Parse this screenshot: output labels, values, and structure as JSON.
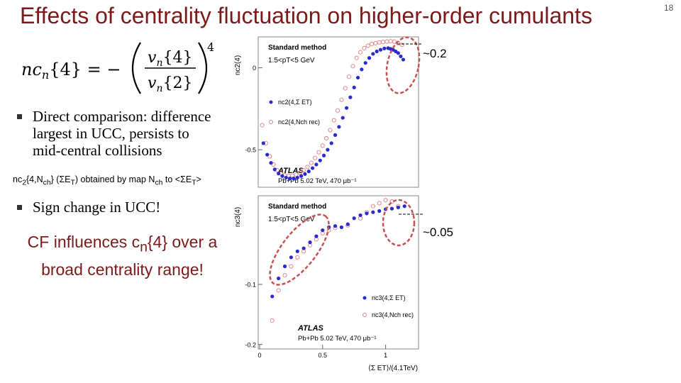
{
  "slide": {
    "title": "Effects of centrality fluctuation on higher-order cumulants",
    "number": "18"
  },
  "formula": {
    "lhs": "nc",
    "lhs_sub": "n",
    "lhs_arg": "{4} = −",
    "num": "v",
    "num_sub": "n",
    "num_arg": "{4}",
    "den": "v",
    "den_sub": "n",
    "den_arg": "{2}",
    "power": "4"
  },
  "bullets": [
    {
      "lines": [
        "Direct comparison: difference",
        "largest in UCC,  persists to",
        "mid-central collisions"
      ]
    },
    {
      "lines": [
        "Sign change in UCC!"
      ]
    }
  ],
  "note": {
    "p1": "nc",
    "s1": "2",
    "p2": "{4,N",
    "s2": "ch",
    "p3": "} (ΣE",
    "s3": "T",
    "p4": ") obtained by map N",
    "s4": "ch",
    "p5": " to <ΣE",
    "s5": "T",
    "p6": ">"
  },
  "conclusion": {
    "l1a": "CF influences c",
    "l1sub": "n",
    "l1b": "{4} over a",
    "l2": "broad centrality range!"
  },
  "colors": {
    "title": "#7a1a1a",
    "standard_series": "#2a2ad0",
    "nch_series": "#e08a8a",
    "ellipse": "#c75050"
  },
  "chart_data": [
    {
      "type": "scatter",
      "ylabel": "nc2(4)",
      "ytick_labels": [
        "0",
        "-0.5"
      ],
      "yticks": [
        0,
        -0.5
      ],
      "ylim": [
        -0.72,
        0.18
      ],
      "xlim": [
        0,
        1.25
      ],
      "method_label": "Standard method",
      "pt_label": "1.5<pT<5 GeV",
      "legend": [
        "nc2(4,Σ ET)",
        "nc2(4,Nch rec)"
      ],
      "experiment": "ATLAS",
      "system": "Pb+Pb 5.02 TeV, 470 μb⁻¹",
      "annotation": "~0.2",
      "series": [
        {
          "name": "nc2(4,Σ ET)",
          "x": [
            0.03,
            0.06,
            0.09,
            0.12,
            0.15,
            0.18,
            0.21,
            0.24,
            0.27,
            0.3,
            0.33,
            0.36,
            0.39,
            0.42,
            0.45,
            0.48,
            0.51,
            0.54,
            0.57,
            0.6,
            0.63,
            0.66,
            0.69,
            0.72,
            0.75,
            0.78,
            0.81,
            0.84,
            0.87,
            0.9,
            0.93,
            0.96,
            0.99,
            1.02,
            1.04,
            1.06,
            1.08,
            1.1,
            1.12,
            1.14
          ],
          "y": [
            -0.46,
            -0.53,
            -0.58,
            -0.62,
            -0.645,
            -0.66,
            -0.67,
            -0.675,
            -0.675,
            -0.67,
            -0.66,
            -0.648,
            -0.632,
            -0.612,
            -0.59,
            -0.565,
            -0.535,
            -0.5,
            -0.46,
            -0.41,
            -0.36,
            -0.305,
            -0.245,
            -0.18,
            -0.12,
            -0.06,
            -0.01,
            0.03,
            0.06,
            0.085,
            0.1,
            0.11,
            0.118,
            0.12,
            0.115,
            0.11,
            0.1,
            0.09,
            0.07,
            0.05
          ]
        },
        {
          "name": "nc2(4,Nch rec)",
          "x": [
            0.02,
            0.05,
            0.08,
            0.11,
            0.14,
            0.17,
            0.2,
            0.23,
            0.26,
            0.29,
            0.32,
            0.35,
            0.38,
            0.41,
            0.44,
            0.47,
            0.5,
            0.53,
            0.56,
            0.59,
            0.62,
            0.65,
            0.68,
            0.71,
            0.74,
            0.77,
            0.8,
            0.83,
            0.86,
            0.89,
            0.92,
            0.95,
            0.98,
            1.01,
            1.04,
            1.07,
            1.1,
            1.13
          ],
          "y": [
            -0.35,
            -0.46,
            -0.54,
            -0.59,
            -0.625,
            -0.645,
            -0.655,
            -0.66,
            -0.658,
            -0.652,
            -0.64,
            -0.625,
            -0.605,
            -0.58,
            -0.55,
            -0.515,
            -0.475,
            -0.43,
            -0.38,
            -0.32,
            -0.26,
            -0.195,
            -0.125,
            -0.055,
            0.01,
            0.06,
            0.095,
            0.12,
            0.135,
            0.145,
            0.15,
            0.155,
            0.158,
            0.16,
            0.162,
            0.16,
            0.15,
            0.14
          ]
        }
      ]
    },
    {
      "type": "scatter",
      "ylabel": "nc3(4)",
      "ytick_labels": [
        "-0.1",
        "-0.2"
      ],
      "yticks": [
        -0.1,
        -0.2
      ],
      "xtick_labels": [
        "0",
        "0.5",
        "1"
      ],
      "xticks": [
        0,
        0.5,
        1
      ],
      "xlim": [
        0,
        1.25
      ],
      "ylim": [
        -0.205,
        0.045
      ],
      "xlabel": "⟨Σ ET⟩/(4.1TeV)",
      "method_label": "Standard method",
      "pt_label": "1.5<pT<5 GeV",
      "legend": [
        "nc3(4,Σ ET)",
        "nc3(4,Nch rec)"
      ],
      "experiment": "ATLAS",
      "system": "Pb+Pb 5.02 TeV, 470 μb⁻¹",
      "annotation": "~0.05",
      "series": [
        {
          "name": "nc3(4,Σ ET)",
          "x": [
            0.1,
            0.15,
            0.2,
            0.25,
            0.3,
            0.35,
            0.4,
            0.45,
            0.5,
            0.55,
            0.6,
            0.65,
            0.7,
            0.75,
            0.8,
            0.85,
            0.9,
            0.95,
            1.0,
            1.05,
            1.1,
            1.15
          ],
          "y": [
            -0.12,
            -0.09,
            -0.07,
            -0.055,
            -0.045,
            -0.04,
            -0.03,
            -0.02,
            -0.01,
            -0.005,
            -0.003,
            -0.005,
            0.0,
            0.01,
            0.015,
            0.018,
            0.02,
            0.022,
            0.025,
            0.026,
            0.028,
            0.03
          ]
        },
        {
          "name": "nc3(4,Nch rec)",
          "x": [
            0.1,
            0.15,
            0.2,
            0.25,
            0.3,
            0.35,
            0.4,
            0.45,
            0.5,
            0.55,
            0.6,
            0.7,
            0.8,
            0.85,
            0.9,
            0.95,
            1.0,
            1.05,
            1.1
          ],
          "y": [
            -0.16,
            -0.11,
            -0.085,
            -0.07,
            -0.055,
            -0.045,
            -0.035,
            -0.025,
            -0.015,
            -0.01,
            -0.006,
            -0.002,
            0.01,
            0.02,
            0.03,
            0.035,
            0.04,
            0.038,
            0.03
          ]
        }
      ]
    }
  ]
}
